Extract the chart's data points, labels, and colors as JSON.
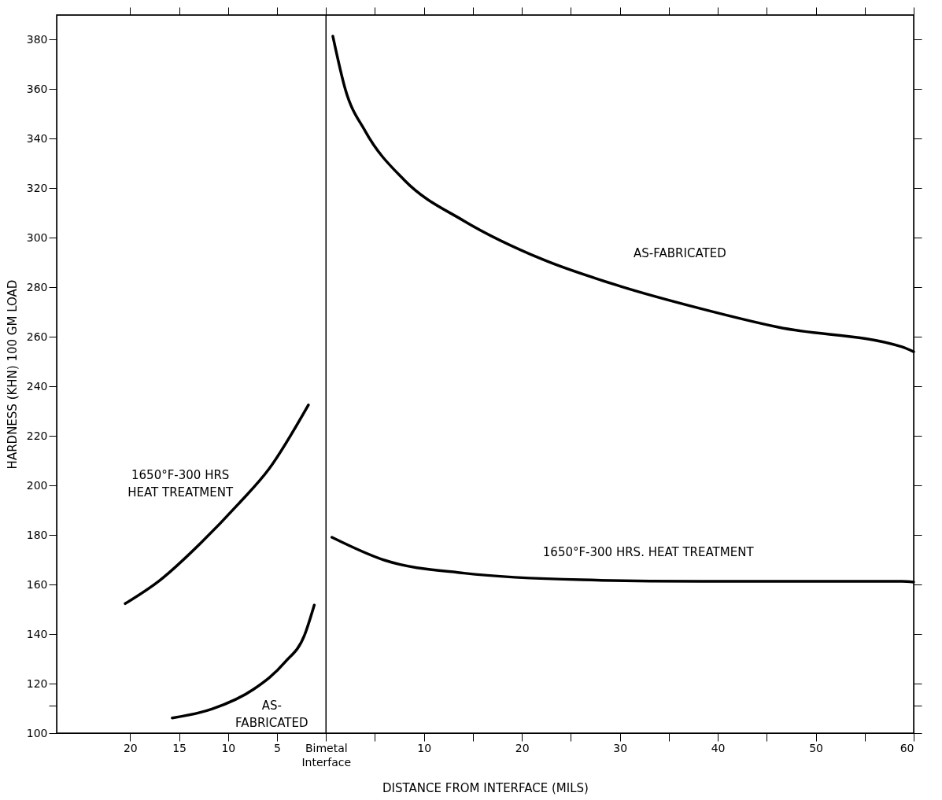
{
  "chart_data": {
    "type": "line",
    "xlabel": "DISTANCE FROM INTERFACE (MILS)",
    "ylabel": "HARDNESS (KHN) 100 GM LOAD",
    "xlim": [
      -27.5,
      60
    ],
    "xticks": [
      {
        "value": -20,
        "label": "20"
      },
      {
        "value": -15,
        "label": "15"
      },
      {
        "value": -10,
        "label": "10"
      },
      {
        "value": -5,
        "label": "5"
      },
      {
        "value": 0,
        "label": "Bimetal Interface"
      },
      {
        "value": 5,
        "label": null
      },
      10,
      {
        "value": 15,
        "label": null
      },
      20,
      {
        "value": 25,
        "label": null
      },
      30,
      {
        "value": 35,
        "label": null
      },
      40,
      {
        "value": 45,
        "label": null
      },
      50,
      {
        "value": 55,
        "label": null
      },
      60
    ],
    "ylim": [
      100,
      390
    ],
    "yticks": [
      100,
      {
        "value": 111,
        "label": null
      },
      120,
      140,
      160,
      180,
      200,
      220,
      240,
      260,
      280,
      300,
      320,
      340,
      360,
      380
    ],
    "grid": false,
    "marker": "none",
    "line_style": "solid",
    "series": [
      {
        "name": "1650°F-300 HRS\nHEAT TREATMENT",
        "color": "#000000",
        "x": [
          -20.5,
          -17.0,
          -12.7,
          -9.0,
          -5.8,
          -1.8
        ],
        "values": [
          152.3,
          161.6,
          177.1,
          192.3,
          206.8,
          232.5
        ]
      },
      {
        "name": "AS-\nFABRICATED",
        "color": "#000000",
        "x": [
          -15.7,
          -11.6,
          -7.4,
          -4.2,
          -2.2,
          -1.2
        ],
        "values": [
          106.1,
          109.8,
          117.7,
          128.6,
          139.5,
          151.7
        ]
      },
      {
        "name": "AS-FABRICATED",
        "color": "#000000",
        "x": [
          0.7,
          2.0,
          4.0,
          8.0,
          14.1,
          22.1,
          30.1,
          38.2,
          46.2,
          58.8,
          60
        ],
        "values": [
          381.4,
          359.6,
          343.1,
          323.3,
          306.8,
          291.3,
          280.4,
          271.5,
          263.9,
          256,
          254
        ]
      },
      {
        "name": "1650°F-300 HRS. HEAT TREATMENT",
        "color": "#000000",
        "x": [
          0.6,
          6.0,
          14.1,
          26.1,
          38.2,
          58.8,
          60
        ],
        "values": [
          179.1,
          169.8,
          164.6,
          161.9,
          161.3,
          161.3,
          161
        ]
      }
    ],
    "ref_lines": [
      {
        "axis": "x",
        "value": 0,
        "label": null,
        "color": "#000000"
      }
    ]
  }
}
